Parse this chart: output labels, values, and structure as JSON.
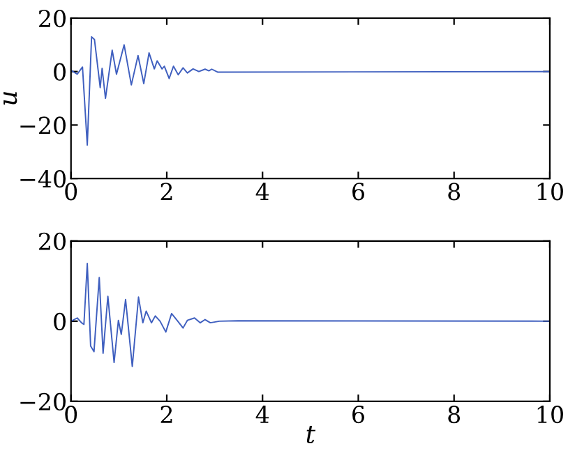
{
  "chart_data": [
    {
      "type": "line",
      "ylabel": "u",
      "xlim": [
        0,
        10
      ],
      "ylim": [
        -40,
        20
      ],
      "xticks": [
        0,
        2,
        4,
        6,
        8,
        10
      ],
      "yticks": [
        -40,
        -20,
        0,
        20
      ],
      "grid": false,
      "legend": false,
      "series": [
        {
          "color": "#3f5fbf",
          "x": [
            0,
            0.13,
            0.24,
            0.34,
            0.43,
            0.49,
            0.61,
            0.65,
            0.72,
            0.86,
            0.95,
            1.11,
            1.26,
            1.4,
            1.52,
            1.63,
            1.74,
            1.8,
            1.9,
            1.95,
            2.05,
            2.14,
            2.24,
            2.34,
            2.43,
            2.55,
            2.67,
            2.8,
            2.88,
            2.94,
            3.06,
            10
          ],
          "values": [
            0.5,
            -1,
            1.7,
            -27.5,
            13,
            12,
            -6,
            1.2,
            -10,
            8,
            -1,
            10,
            -5,
            6,
            -4.5,
            7,
            1,
            4,
            1,
            2,
            -2.6,
            2,
            -1.2,
            1.4,
            -0.5,
            1,
            0,
            0.9,
            0.3,
            0.9,
            -0.2,
            0
          ]
        }
      ]
    },
    {
      "type": "line",
      "xlabel": "t",
      "xlim": [
        0,
        10
      ],
      "ylim": [
        -20,
        20
      ],
      "xticks": [
        0,
        2,
        4,
        6,
        8,
        10
      ],
      "yticks": [
        -20,
        0,
        20
      ],
      "grid": false,
      "legend": false,
      "series": [
        {
          "color": "#3f5fbf",
          "x": [
            0,
            0.13,
            0.22,
            0.27,
            0.34,
            0.41,
            0.48,
            0.59,
            0.67,
            0.77,
            0.9,
            0.99,
            1.05,
            1.14,
            1.28,
            1.41,
            1.5,
            1.57,
            1.68,
            1.76,
            1.86,
            1.98,
            2.1,
            2.23,
            2.34,
            2.43,
            2.58,
            2.7,
            2.8,
            2.91,
            3.1,
            3.49,
            10
          ],
          "values": [
            0,
            0.8,
            -0.4,
            -0.8,
            14.4,
            -6.2,
            -7.6,
            10.9,
            -8,
            6.2,
            -10.3,
            0.2,
            -3.3,
            5.4,
            -11.3,
            6,
            -0.4,
            2.5,
            -0.4,
            1.3,
            0,
            -2.7,
            1.9,
            0,
            -1.7,
            0.2,
            0.8,
            -0.4,
            0.4,
            -0.4,
            0,
            0.1,
            0
          ]
        }
      ]
    }
  ]
}
